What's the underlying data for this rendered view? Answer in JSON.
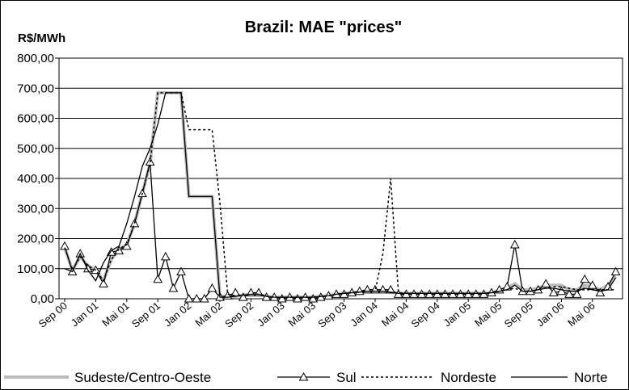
{
  "chart_data": {
    "type": "line",
    "title": "Brazil: MAE \"prices\"",
    "y_label": "R$/MWh",
    "categories": [
      "Sep 00",
      null,
      null,
      null,
      "Jan 01",
      null,
      null,
      null,
      "Mai 01",
      null,
      null,
      null,
      "Sep 01",
      null,
      null,
      null,
      "Jan 02",
      null,
      null,
      null,
      "Mai 02",
      null,
      null,
      null,
      "Sep 02",
      null,
      null,
      null,
      "Jan 03",
      null,
      null,
      null,
      "Mai 03",
      null,
      null,
      null,
      "Sep 03",
      null,
      null,
      null,
      "Jan 04",
      null,
      null,
      null,
      "Mai 04",
      null,
      null,
      null,
      "Sep 04",
      null,
      null,
      null,
      "Jan 05",
      null,
      null,
      null,
      "Mai 05",
      null,
      null,
      null,
      "Sep 05",
      null,
      null,
      null,
      "Jan 06",
      null,
      null,
      null,
      "Mai 06",
      null,
      null,
      null
    ],
    "ylim": [
      0,
      800
    ],
    "yticks": [
      {
        "value": 0,
        "label": "0,00"
      },
      {
        "value": 100,
        "label": "100,00"
      },
      {
        "value": 200,
        "label": "200,00"
      },
      {
        "value": 300,
        "label": "300,00"
      },
      {
        "value": 400,
        "label": "400,00"
      },
      {
        "value": 500,
        "label": "500,00"
      },
      {
        "value": 600,
        "label": "600,00"
      },
      {
        "value": 700,
        "label": "700,00"
      },
      {
        "value": 800,
        "label": "800,00"
      }
    ],
    "grid": true,
    "legend": "bottom",
    "series": [
      {
        "name": "Sudeste/Centro-Oeste",
        "color": "#bbbbbb",
        "line_style": "thick",
        "values": [
          170,
          95,
          140,
          110,
          95,
          60,
          130,
          165,
          180,
          250,
          350,
          450,
          685,
          685,
          685,
          685,
          340,
          340,
          340,
          340,
          10,
          5,
          8,
          12,
          15,
          15,
          8,
          5,
          5,
          5,
          5,
          5,
          5,
          8,
          10,
          15,
          18,
          20,
          22,
          25,
          25,
          25,
          22,
          18,
          18,
          18,
          18,
          18,
          18,
          18,
          18,
          18,
          18,
          18,
          18,
          20,
          25,
          35,
          50,
          30,
          30,
          35,
          45,
          45,
          45,
          30,
          30,
          45,
          40,
          30,
          45,
          75
        ]
      },
      {
        "name": "Sul",
        "color": "#000000",
        "line_style": "triangles",
        "values": [
          175,
          90,
          150,
          100,
          95,
          50,
          155,
          160,
          175,
          250,
          350,
          455,
          65,
          140,
          35,
          90,
          0,
          0,
          0,
          35,
          5,
          10,
          20,
          5,
          20,
          20,
          5,
          5,
          0,
          5,
          0,
          5,
          0,
          5,
          10,
          15,
          15,
          20,
          25,
          30,
          30,
          30,
          30,
          15,
          15,
          15,
          15,
          15,
          15,
          15,
          15,
          15,
          15,
          15,
          15,
          20,
          30,
          40,
          180,
          25,
          25,
          30,
          50,
          20,
          25,
          15,
          15,
          65,
          45,
          20,
          40,
          90
        ]
      },
      {
        "name": "Nordeste",
        "color": "#000000",
        "line_style": "dotted",
        "values": [
          170,
          95,
          140,
          110,
          95,
          60,
          130,
          165,
          180,
          250,
          350,
          450,
          685,
          685,
          685,
          685,
          562,
          562,
          562,
          562,
          320,
          15,
          10,
          12,
          15,
          15,
          8,
          5,
          5,
          5,
          5,
          5,
          5,
          8,
          10,
          15,
          18,
          20,
          22,
          25,
          25,
          150,
          400,
          20,
          18,
          18,
          18,
          18,
          18,
          18,
          18,
          18,
          18,
          18,
          18,
          20,
          25,
          30,
          35,
          25,
          25,
          30,
          35,
          40,
          40,
          35,
          30,
          30,
          30,
          30,
          30,
          30
        ]
      },
      {
        "name": "Norte",
        "color": "#000000",
        "line_style": "solid",
        "values": [
          100,
          90,
          150,
          95,
          60,
          120,
          160,
          175,
          250,
          340,
          440,
          500,
          580,
          685,
          685,
          685,
          340,
          340,
          340,
          340,
          5,
          5,
          8,
          12,
          15,
          15,
          8,
          5,
          5,
          5,
          5,
          5,
          5,
          8,
          10,
          15,
          18,
          20,
          22,
          25,
          25,
          25,
          22,
          18,
          18,
          18,
          18,
          18,
          18,
          18,
          18,
          18,
          18,
          18,
          18,
          20,
          25,
          30,
          45,
          25,
          25,
          30,
          35,
          35,
          30,
          25,
          25,
          35,
          30,
          25,
          30,
          70
        ]
      }
    ]
  }
}
